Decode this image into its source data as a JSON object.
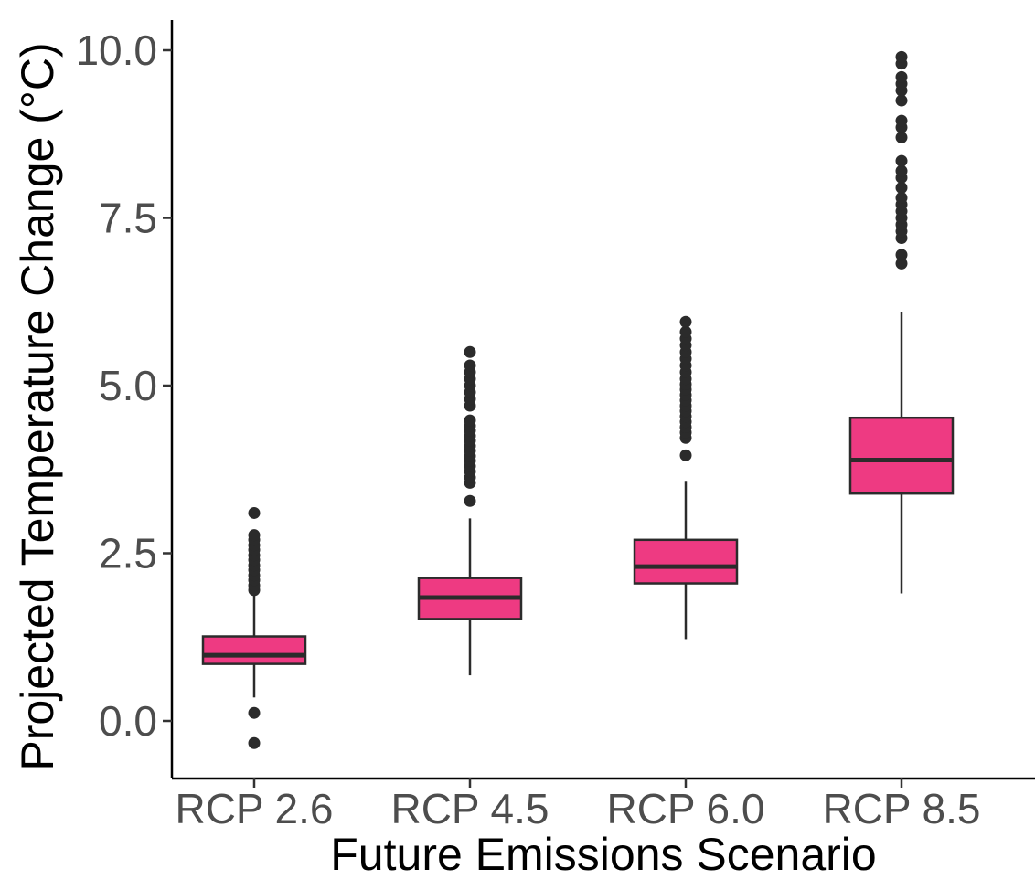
{
  "chart_data": {
    "type": "boxplot",
    "title": "",
    "xlabel": "Future Emissions Scenario",
    "ylabel": "Projected Temperature Change (°C)",
    "ylim": [
      -0.85,
      10.45
    ],
    "yticks": [
      "0.0",
      "2.5",
      "5.0",
      "7.5",
      "10.0"
    ],
    "ytick_values": [
      0,
      2.5,
      5,
      7.5,
      10
    ],
    "grid": false,
    "legend": "none",
    "fill_color": "#EE3A82",
    "stroke_color": "#2b2b2b",
    "categories": [
      "RCP 2.6",
      "RCP 4.5",
      "RCP 6.0",
      "RCP 8.5"
    ],
    "boxes": [
      {
        "label": "RCP 2.6",
        "whisker_low": 0.35,
        "q1": 0.85,
        "median": 0.98,
        "q3": 1.26,
        "whisker_high": 1.92,
        "outliers": [
          -0.33,
          0.12,
          1.95,
          2.02,
          2.1,
          2.17,
          2.25,
          2.32,
          2.4,
          2.47,
          2.55,
          2.62,
          2.7,
          2.77,
          3.1
        ]
      },
      {
        "label": "RCP 4.5",
        "whisker_low": 0.68,
        "q1": 1.52,
        "median": 1.84,
        "q3": 2.13,
        "whisker_high": 3.02,
        "outliers": [
          3.28,
          3.55,
          3.63,
          3.72,
          3.8,
          3.88,
          3.95,
          4.03,
          4.1,
          4.18,
          4.25,
          4.33,
          4.4,
          4.48,
          4.7,
          4.8,
          4.9,
          5.0,
          5.1,
          5.2,
          5.3,
          5.5
        ]
      },
      {
        "label": "RCP 6.0",
        "whisker_low": 1.22,
        "q1": 2.05,
        "median": 2.3,
        "q3": 2.7,
        "whisker_high": 3.58,
        "outliers": [
          3.96,
          4.22,
          4.3,
          4.38,
          4.46,
          4.54,
          4.62,
          4.7,
          4.78,
          4.86,
          4.94,
          5.02,
          5.1,
          5.2,
          5.3,
          5.4,
          5.5,
          5.6,
          5.7,
          5.8,
          5.95
        ]
      },
      {
        "label": "RCP 8.5",
        "whisker_low": 1.9,
        "q1": 3.39,
        "median": 3.89,
        "q3": 4.52,
        "whisker_high": 6.1,
        "outliers": [
          6.82,
          6.95,
          7.2,
          7.3,
          7.4,
          7.5,
          7.6,
          7.7,
          7.8,
          7.95,
          8.1,
          8.2,
          8.35,
          8.7,
          8.85,
          8.95,
          9.25,
          9.4,
          9.5,
          9.6,
          9.8,
          9.9
        ]
      }
    ]
  }
}
